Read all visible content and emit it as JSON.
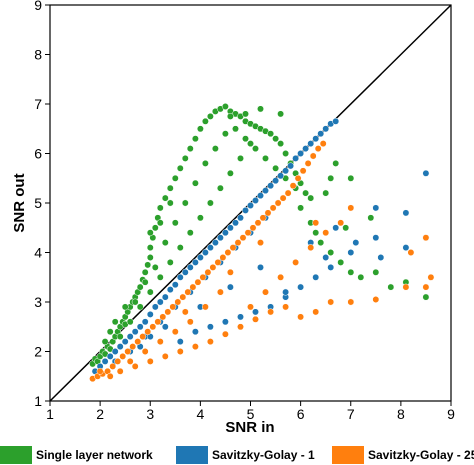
{
  "chart_data": {
    "type": "scatter",
    "xlabel": "SNR in",
    "ylabel": "SNR out",
    "xlim": [
      1,
      9
    ],
    "ylim": [
      1,
      9
    ],
    "xticks": [
      "1",
      "2",
      "3",
      "4",
      "5",
      "6",
      "7",
      "8",
      "9"
    ],
    "yticks": [
      "1",
      "2",
      "3",
      "4",
      "5",
      "6",
      "7",
      "8",
      "9"
    ],
    "grid": false,
    "legend_position": "bottom",
    "reference_line": {
      "from": [
        1,
        1
      ],
      "to": [
        9,
        9
      ],
      "color": "#000000"
    },
    "series": [
      {
        "name": "Single layer network",
        "color": "#2ca02c",
        "points": [
          [
            1.85,
            1.75
          ],
          [
            1.9,
            1.85
          ],
          [
            1.95,
            1.8
          ],
          [
            2.0,
            1.9
          ],
          [
            2.05,
            2.0
          ],
          [
            2.1,
            1.95
          ],
          [
            2.15,
            2.1
          ],
          [
            2.2,
            2.05
          ],
          [
            2.25,
            2.2
          ],
          [
            2.3,
            2.3
          ],
          [
            2.35,
            2.4
          ],
          [
            2.4,
            2.5
          ],
          [
            2.45,
            2.6
          ],
          [
            2.5,
            2.55
          ],
          [
            2.5,
            2.7
          ],
          [
            2.55,
            2.8
          ],
          [
            2.6,
            2.9
          ],
          [
            2.65,
            3.0
          ],
          [
            2.7,
            3.1
          ],
          [
            2.75,
            3.2
          ],
          [
            2.8,
            3.3
          ],
          [
            2.85,
            3.45
          ],
          [
            2.9,
            3.6
          ],
          [
            2.95,
            3.75
          ],
          [
            3.0,
            3.9
          ],
          [
            3.0,
            4.1
          ],
          [
            3.05,
            4.3
          ],
          [
            3.1,
            4.5
          ],
          [
            3.15,
            4.7
          ],
          [
            3.2,
            4.9
          ],
          [
            3.3,
            5.1
          ],
          [
            3.4,
            5.3
          ],
          [
            3.5,
            5.5
          ],
          [
            3.6,
            5.7
          ],
          [
            3.7,
            5.9
          ],
          [
            3.8,
            6.1
          ],
          [
            3.9,
            6.3
          ],
          [
            4.0,
            6.5
          ],
          [
            4.1,
            6.65
          ],
          [
            4.2,
            6.75
          ],
          [
            4.3,
            6.85
          ],
          [
            4.4,
            6.9
          ],
          [
            4.5,
            6.95
          ],
          [
            4.6,
            6.85
          ],
          [
            4.7,
            6.8
          ],
          [
            4.8,
            6.75
          ],
          [
            4.9,
            6.65
          ],
          [
            5.0,
            6.6
          ],
          [
            5.1,
            6.55
          ],
          [
            5.2,
            6.5
          ],
          [
            5.3,
            6.45
          ],
          [
            5.4,
            6.4
          ],
          [
            5.5,
            6.3
          ],
          [
            5.6,
            6.2
          ],
          [
            5.7,
            6.0
          ],
          [
            5.8,
            5.8
          ],
          [
            5.9,
            5.6
          ],
          [
            6.0,
            5.4
          ],
          [
            6.1,
            5.2
          ],
          [
            6.2,
            5.1
          ],
          [
            2.2,
            2.4
          ],
          [
            2.4,
            2.3
          ],
          [
            2.6,
            2.6
          ],
          [
            2.8,
            2.9
          ],
          [
            3.0,
            3.2
          ],
          [
            3.2,
            3.5
          ],
          [
            3.4,
            3.8
          ],
          [
            3.6,
            4.1
          ],
          [
            3.8,
            4.4
          ],
          [
            4.0,
            4.7
          ],
          [
            4.2,
            5.0
          ],
          [
            4.4,
            5.3
          ],
          [
            4.6,
            5.6
          ],
          [
            4.8,
            5.9
          ],
          [
            5.0,
            6.2
          ],
          [
            3.1,
            3.7
          ],
          [
            3.3,
            4.2
          ],
          [
            3.5,
            4.6
          ],
          [
            3.7,
            5.0
          ],
          [
            3.9,
            5.4
          ],
          [
            4.1,
            5.8
          ],
          [
            4.3,
            6.1
          ],
          [
            4.5,
            6.4
          ],
          [
            4.7,
            6.5
          ],
          [
            4.9,
            6.3
          ],
          [
            5.1,
            6.1
          ],
          [
            5.3,
            5.9
          ],
          [
            5.5,
            5.7
          ],
          [
            5.7,
            5.5
          ],
          [
            5.9,
            5.3
          ],
          [
            6.0,
            4.9
          ],
          [
            6.2,
            4.6
          ],
          [
            6.3,
            4.4
          ],
          [
            6.4,
            4.2
          ],
          [
            6.6,
            4.0
          ],
          [
            6.8,
            3.8
          ],
          [
            7.0,
            3.6
          ],
          [
            7.2,
            3.5
          ],
          [
            7.5,
            3.6
          ],
          [
            7.8,
            3.3
          ],
          [
            8.1,
            3.4
          ],
          [
            8.5,
            3.1
          ],
          [
            6.5,
            5.2
          ],
          [
            6.6,
            5.5
          ],
          [
            6.7,
            5.8
          ],
          [
            7.0,
            5.5
          ],
          [
            6.9,
            4.5
          ],
          [
            7.4,
            4.7
          ],
          [
            5.6,
            6.8
          ],
          [
            5.2,
            6.9
          ],
          [
            4.9,
            6.8
          ],
          [
            4.6,
            6.75
          ],
          [
            3.4,
            5.0
          ],
          [
            3.2,
            4.6
          ],
          [
            3.0,
            4.4
          ],
          [
            2.9,
            3.4
          ],
          [
            2.7,
            3.0
          ],
          [
            2.5,
            2.9
          ],
          [
            2.3,
            2.6
          ],
          [
            2.1,
            2.2
          ]
        ]
      },
      {
        "name": "Savitzky-Golay - 1",
        "color": "#1f77b4",
        "points": [
          [
            1.9,
            1.6
          ],
          [
            2.0,
            1.7
          ],
          [
            2.1,
            1.8
          ],
          [
            2.2,
            1.9
          ],
          [
            2.3,
            2.0
          ],
          [
            2.4,
            2.1
          ],
          [
            2.5,
            2.2
          ],
          [
            2.6,
            2.3
          ],
          [
            2.7,
            2.4
          ],
          [
            2.8,
            2.5
          ],
          [
            2.9,
            2.6
          ],
          [
            3.0,
            2.75
          ],
          [
            3.1,
            2.9
          ],
          [
            3.2,
            3.0
          ],
          [
            3.3,
            3.1
          ],
          [
            3.4,
            3.25
          ],
          [
            3.5,
            3.35
          ],
          [
            3.6,
            3.5
          ],
          [
            3.7,
            3.6
          ],
          [
            3.8,
            3.7
          ],
          [
            3.9,
            3.8
          ],
          [
            4.0,
            3.9
          ],
          [
            4.1,
            4.0
          ],
          [
            4.2,
            4.1
          ],
          [
            4.3,
            4.2
          ],
          [
            4.4,
            4.3
          ],
          [
            4.5,
            4.4
          ],
          [
            4.6,
            4.5
          ],
          [
            4.7,
            4.6
          ],
          [
            4.8,
            4.7
          ],
          [
            4.9,
            4.85
          ],
          [
            5.0,
            4.95
          ],
          [
            5.1,
            5.05
          ],
          [
            5.2,
            5.15
          ],
          [
            5.3,
            5.25
          ],
          [
            5.4,
            5.35
          ],
          [
            5.5,
            5.45
          ],
          [
            5.6,
            5.55
          ],
          [
            5.7,
            5.65
          ],
          [
            5.8,
            5.75
          ],
          [
            5.9,
            5.9
          ],
          [
            6.0,
            6.0
          ],
          [
            6.1,
            6.1
          ],
          [
            6.2,
            6.2
          ],
          [
            6.3,
            6.3
          ],
          [
            6.4,
            6.4
          ],
          [
            6.5,
            6.5
          ],
          [
            6.6,
            6.6
          ],
          [
            6.7,
            6.65
          ],
          [
            2.3,
            1.8
          ],
          [
            2.6,
            2.0
          ],
          [
            2.9,
            2.3
          ],
          [
            3.2,
            2.6
          ],
          [
            3.5,
            2.9
          ],
          [
            3.8,
            3.2
          ],
          [
            4.1,
            3.5
          ],
          [
            4.4,
            3.8
          ],
          [
            4.7,
            4.1
          ],
          [
            5.0,
            4.4
          ],
          [
            5.3,
            4.7
          ],
          [
            3.6,
            2.2
          ],
          [
            3.9,
            2.4
          ],
          [
            4.2,
            2.5
          ],
          [
            4.5,
            2.6
          ],
          [
            4.8,
            2.7
          ],
          [
            5.1,
            2.8
          ],
          [
            5.4,
            2.9
          ],
          [
            5.7,
            3.1
          ],
          [
            6.0,
            3.3
          ],
          [
            6.3,
            3.5
          ],
          [
            6.6,
            3.7
          ],
          [
            6.2,
            4.2
          ],
          [
            6.7,
            4.5
          ],
          [
            7.0,
            4.0
          ],
          [
            7.5,
            4.9
          ],
          [
            7.5,
            4.3
          ],
          [
            8.1,
            4.8
          ],
          [
            8.5,
            4.3
          ],
          [
            8.5,
            5.6
          ],
          [
            7.6,
            3.9
          ],
          [
            8.1,
            4.1
          ],
          [
            7.1,
            4.2
          ],
          [
            6.5,
            3.9
          ],
          [
            5.7,
            3.2
          ],
          [
            3.0,
            2.3
          ],
          [
            2.8,
            2.1
          ],
          [
            3.3,
            2.5
          ],
          [
            4.0,
            2.9
          ],
          [
            4.6,
            3.3
          ],
          [
            5.2,
            3.7
          ]
        ]
      },
      {
        "name": "Savitzky-Golay - 25",
        "color": "#ff7f0e",
        "points": [
          [
            1.85,
            1.45
          ],
          [
            1.95,
            1.5
          ],
          [
            2.05,
            1.55
          ],
          [
            2.15,
            1.6
          ],
          [
            2.25,
            1.7
          ],
          [
            2.35,
            1.8
          ],
          [
            2.45,
            1.9
          ],
          [
            2.55,
            2.0
          ],
          [
            2.65,
            2.1
          ],
          [
            2.75,
            2.2
          ],
          [
            2.85,
            2.3
          ],
          [
            2.95,
            2.4
          ],
          [
            3.05,
            2.5
          ],
          [
            3.15,
            2.6
          ],
          [
            3.25,
            2.7
          ],
          [
            3.35,
            2.8
          ],
          [
            3.45,
            2.9
          ],
          [
            3.55,
            3.0
          ],
          [
            3.65,
            3.1
          ],
          [
            3.75,
            3.2
          ],
          [
            3.85,
            3.3
          ],
          [
            3.95,
            3.4
          ],
          [
            4.05,
            3.5
          ],
          [
            4.15,
            3.6
          ],
          [
            4.25,
            3.7
          ],
          [
            4.35,
            3.8
          ],
          [
            4.45,
            3.9
          ],
          [
            4.55,
            4.0
          ],
          [
            4.65,
            4.1
          ],
          [
            4.75,
            4.2
          ],
          [
            4.85,
            4.3
          ],
          [
            4.95,
            4.4
          ],
          [
            5.05,
            4.5
          ],
          [
            5.15,
            4.6
          ],
          [
            5.25,
            4.7
          ],
          [
            5.35,
            4.8
          ],
          [
            5.45,
            4.9
          ],
          [
            5.55,
            5.0
          ],
          [
            5.65,
            5.1
          ],
          [
            5.75,
            5.2
          ],
          [
            5.85,
            5.35
          ],
          [
            5.95,
            5.5
          ],
          [
            6.05,
            5.65
          ],
          [
            6.15,
            5.8
          ],
          [
            6.25,
            5.95
          ],
          [
            6.35,
            6.1
          ],
          [
            6.45,
            6.2
          ],
          [
            2.4,
            1.6
          ],
          [
            2.7,
            1.7
          ],
          [
            3.0,
            1.8
          ],
          [
            3.3,
            1.9
          ],
          [
            3.6,
            2.0
          ],
          [
            3.9,
            2.1
          ],
          [
            4.2,
            2.2
          ],
          [
            4.5,
            2.35
          ],
          [
            4.8,
            2.5
          ],
          [
            5.1,
            2.65
          ],
          [
            5.4,
            2.8
          ],
          [
            5.7,
            2.9
          ],
          [
            6.0,
            2.7
          ],
          [
            6.3,
            2.8
          ],
          [
            6.6,
            3.0
          ],
          [
            7.0,
            3.0
          ],
          [
            7.5,
            3.05
          ],
          [
            8.1,
            3.3
          ],
          [
            8.5,
            3.3
          ],
          [
            8.6,
            3.5
          ],
          [
            5.0,
            2.9
          ],
          [
            5.3,
            3.2
          ],
          [
            5.6,
            3.5
          ],
          [
            5.9,
            3.8
          ],
          [
            6.2,
            4.1
          ],
          [
            6.5,
            4.4
          ],
          [
            6.8,
            4.6
          ],
          [
            7.0,
            4.9
          ],
          [
            6.3,
            4.6
          ],
          [
            8.2,
            4.0
          ],
          [
            8.5,
            4.3
          ],
          [
            4.4,
            3.2
          ],
          [
            4.1,
            2.9
          ],
          [
            3.8,
            2.6
          ],
          [
            3.5,
            2.4
          ],
          [
            3.2,
            2.2
          ],
          [
            2.9,
            2.0
          ],
          [
            2.6,
            1.8
          ],
          [
            2.2,
            1.5
          ],
          [
            2.0,
            1.6
          ],
          [
            3.7,
            2.8
          ],
          [
            4.6,
            3.6
          ],
          [
            5.2,
            4.2
          ]
        ]
      }
    ]
  }
}
